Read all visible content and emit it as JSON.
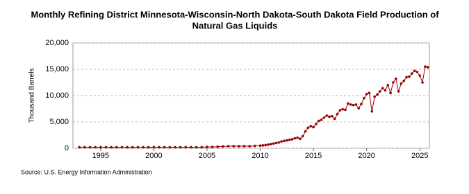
{
  "chart_data": {
    "type": "line",
    "title": [
      "Monthly Refining District Minnesota-Wisconsin-North Dakota-South Dakota Field Production of",
      "Natural Gas Liquids"
    ],
    "y_label": "Thousand Barrels",
    "source": "Source: U.S. Energy Information Administration",
    "xlim": [
      1992.4,
      2025.9
    ],
    "xticks": [
      1995,
      2000,
      2005,
      2010,
      2015,
      2020,
      2025
    ],
    "ylim": [
      0,
      20000
    ],
    "yticks": [
      0,
      {
        "value": 5000,
        "label": "5,000"
      },
      {
        "value": 10000,
        "label": "10,000"
      },
      {
        "value": 15000,
        "label": "15,000"
      },
      {
        "value": 20000,
        "label": "20,000"
      }
    ],
    "grid": true,
    "x": [
      1993,
      1993.5,
      1994,
      1994.5,
      1995,
      1995.5,
      1996,
      1996.5,
      1997,
      1997.5,
      1998,
      1998.5,
      1999,
      1999.5,
      2000,
      2000.5,
      2001,
      2001.5,
      2002,
      2002.5,
      2003,
      2003.5,
      2004,
      2004.5,
      2005,
      2005.5,
      2006,
      2006.5,
      2007,
      2007.5,
      2008,
      2008.5,
      2009,
      2009.5,
      2010,
      2010.25,
      2010.5,
      2010.75,
      2011,
      2011.25,
      2011.5,
      2011.75,
      2012,
      2012.25,
      2012.5,
      2012.75,
      2013,
      2013.25,
      2013.5,
      2013.75,
      2014,
      2014.25,
      2014.5,
      2014.75,
      2015,
      2015.25,
      2015.5,
      2015.75,
      2016,
      2016.25,
      2016.5,
      2016.75,
      2017,
      2017.25,
      2017.5,
      2017.75,
      2018,
      2018.25,
      2018.5,
      2018.75,
      2019,
      2019.25,
      2019.5,
      2019.75,
      2020,
      2020.25,
      2020.5,
      2020.75,
      2021,
      2021.25,
      2021.5,
      2021.75,
      2022,
      2022.25,
      2022.5,
      2022.75,
      2023,
      2023.25,
      2023.5,
      2023.75,
      2024,
      2024.25,
      2024.5,
      2024.75,
      2025,
      2025.25,
      2025.5,
      2025.75
    ],
    "series": [
      {
        "name": "Field Production",
        "color": "#990000",
        "values": [
          200,
          200,
          200,
          200,
          200,
          200,
          200,
          200,
          200,
          200,
          200,
          200,
          200,
          200,
          200,
          200,
          200,
          200,
          200,
          200,
          200,
          200,
          200,
          200,
          250,
          250,
          300,
          350,
          400,
          400,
          400,
          400,
          400,
          450,
          500,
          550,
          600,
          700,
          800,
          900,
          1000,
          1100,
          1300,
          1400,
          1500,
          1600,
          1700,
          1900,
          2000,
          1800,
          2300,
          3200,
          3900,
          4200,
          4000,
          4600,
          5200,
          5400,
          5800,
          6200,
          6000,
          6100,
          5600,
          6500,
          7200,
          7400,
          7300,
          8500,
          8300,
          8200,
          8300,
          7600,
          8400,
          9500,
          10300,
          10500,
          7000,
          9800,
          10200,
          10800,
          11400,
          11000,
          12000,
          10500,
          12500,
          13200,
          10800,
          12300,
          12800,
          13500,
          13600,
          14200,
          14700,
          14500,
          13800,
          12500,
          15500,
          15400
        ]
      }
    ]
  }
}
